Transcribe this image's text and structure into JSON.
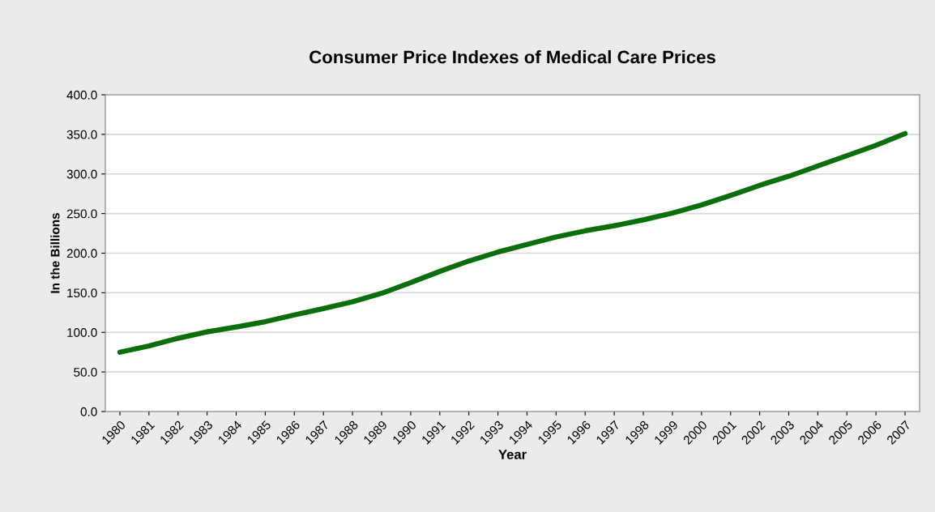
{
  "chart_data": {
    "type": "line",
    "title": "Consumer Price Indexes of Medical Care Prices",
    "xlabel": "Year",
    "ylabel": "In the Billions",
    "categories": [
      "1980",
      "1981",
      "1982",
      "1983",
      "1984",
      "1985",
      "1986",
      "1987",
      "1988",
      "1989",
      "1990",
      "1991",
      "1992",
      "1993",
      "1994",
      "1995",
      "1996",
      "1997",
      "1998",
      "1999",
      "2000",
      "2001",
      "2002",
      "2003",
      "2004",
      "2005",
      "2006",
      "2007"
    ],
    "series": [
      {
        "color": "#0a6e0a",
        "values": [
          74.9,
          82.9,
          92.5,
          100.6,
          106.8,
          113.5,
          122.0,
          130.1,
          138.6,
          149.3,
          162.8,
          177.0,
          190.1,
          201.4,
          211.0,
          220.5,
          228.2,
          234.6,
          242.1,
          250.6,
          260.8,
          272.8,
          285.6,
          297.1,
          310.1,
          323.2,
          336.2,
          351.1
        ]
      }
    ],
    "ylim": [
      0,
      400
    ],
    "yticks": [
      {
        "value": 0,
        "label": "0.0"
      },
      {
        "value": 50,
        "label": "50.0"
      },
      {
        "value": 100,
        "label": "100.0"
      },
      {
        "value": 150,
        "label": "150.0"
      },
      {
        "value": 200,
        "label": "200.0"
      },
      {
        "value": 250,
        "label": "250.0"
      },
      {
        "value": 300,
        "label": "300.0"
      },
      {
        "value": 350,
        "label": "350.0"
      },
      {
        "value": 400,
        "label": "400.0"
      }
    ],
    "grid": "y",
    "marker": "none",
    "line_style": "solid"
  }
}
